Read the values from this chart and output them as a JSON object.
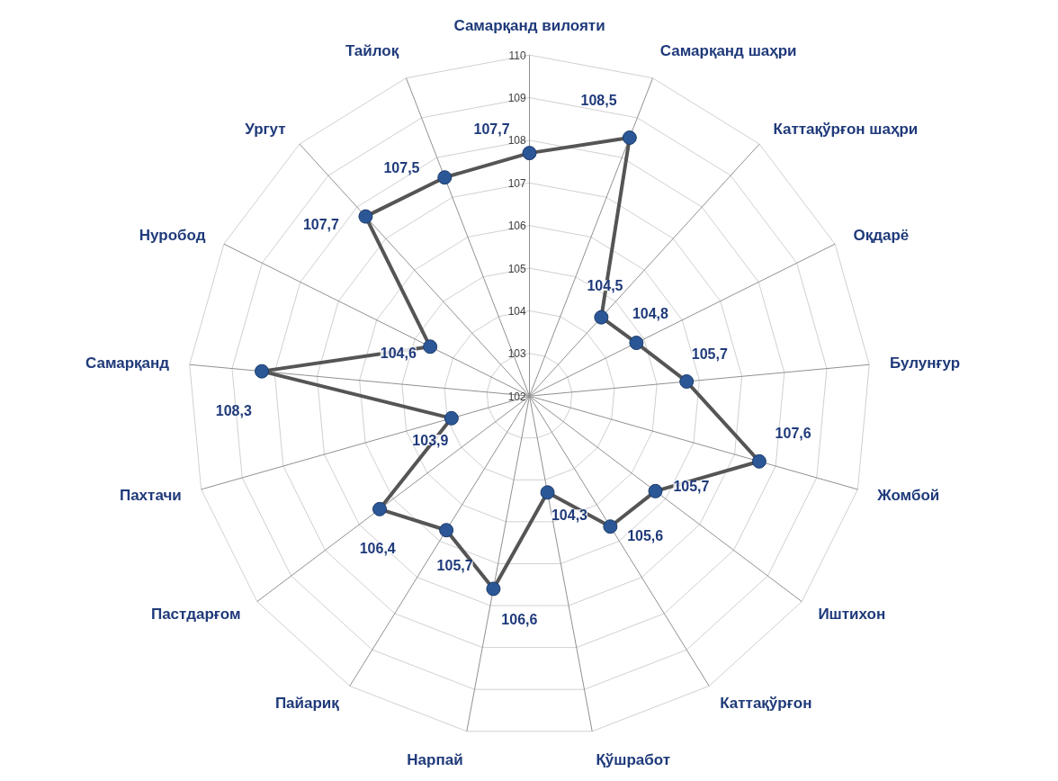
{
  "chart_data": {
    "type": "radar",
    "categories": [
      "Самарқанд вилояти",
      "Самарқанд шаҳри",
      "Каттақўрғон шаҳри",
      "Оқдарё",
      "Булунғур",
      "Жомбой",
      "Иштихон",
      "Каттақўрғон",
      "Қўшработ",
      "Нарпай",
      "Пайариқ",
      "Пастдарғом",
      "Пахтачи",
      "Самарқанд",
      "Нуробод",
      "Ургут",
      "Тайлоқ"
    ],
    "series": [
      {
        "color": "#555555",
        "values": [
          107.7,
          108.5,
          104.5,
          104.8,
          105.7,
          107.6,
          105.7,
          105.6,
          104.3,
          106.6,
          105.7,
          106.4,
          103.9,
          108.3,
          104.6,
          107.7,
          107.5
        ],
        "value_labels": [
          "107,7",
          "108,5",
          "104,5",
          "104,8",
          "105,7",
          "107,6",
          "105,7",
          "105,6",
          "104,3",
          "106,6",
          "105,7",
          "106,4",
          "103,9",
          "108,3",
          "104,6",
          "107,7",
          "107,5"
        ]
      }
    ],
    "ylim": [
      102,
      110
    ],
    "yticks": [
      102,
      103,
      104,
      105,
      106,
      107,
      108,
      109,
      110
    ],
    "grid": true,
    "marker": "circle",
    "line_style": "solid"
  }
}
